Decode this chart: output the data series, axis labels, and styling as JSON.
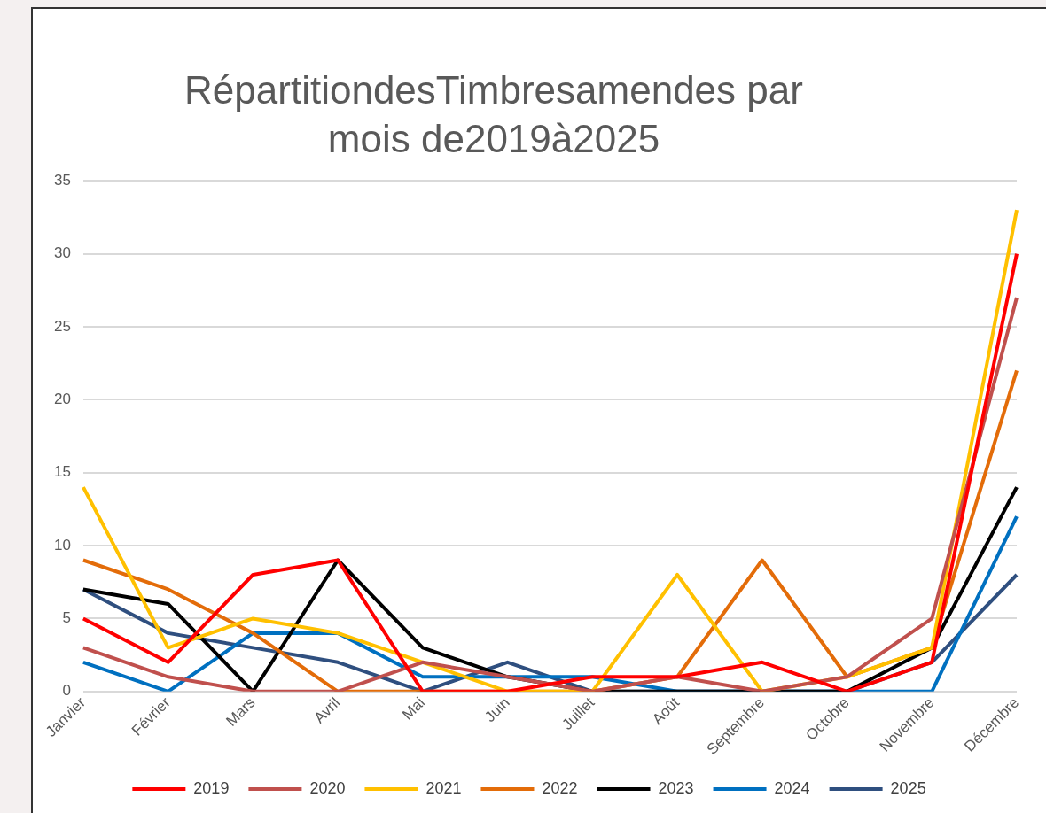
{
  "chart_data": {
    "type": "line",
    "title": "RépartitiondesTimbresamendes par mois de2019à2025",
    "categories": [
      "Janvier",
      "Février",
      "Mars",
      "Avril",
      "Mai",
      "Juin",
      "Juillet",
      "Août",
      "Septembre",
      "Octobre",
      "Novembre",
      "Décembre"
    ],
    "series": [
      {
        "name": "2019",
        "color": "#ff0000",
        "values": [
          5,
          2,
          8,
          9,
          0,
          0,
          1,
          1,
          2,
          0,
          2,
          30
        ]
      },
      {
        "name": "2020",
        "color": "#c0504d",
        "values": [
          3,
          1,
          0,
          0,
          2,
          1,
          0,
          1,
          0,
          1,
          5,
          27
        ]
      },
      {
        "name": "2021",
        "color": "#ffc000",
        "values": [
          14,
          3,
          5,
          4,
          2,
          0,
          0,
          8,
          0,
          1,
          3,
          33
        ]
      },
      {
        "name": "2022",
        "color": "#e36c09",
        "values": [
          9,
          7,
          4,
          0,
          0,
          0,
          0,
          1,
          9,
          1,
          3,
          22
        ]
      },
      {
        "name": "2023",
        "color": "#000000",
        "values": [
          7,
          6,
          0,
          9,
          3,
          1,
          0,
          0,
          0,
          0,
          3,
          14
        ]
      },
      {
        "name": "2024",
        "color": "#0070c0",
        "values": [
          2,
          0,
          4,
          4,
          1,
          1,
          1,
          0,
          0,
          0,
          0,
          12
        ]
      },
      {
        "name": "2025",
        "color": "#2f4f7f",
        "values": [
          7,
          4,
          3,
          2,
          0,
          2,
          0,
          0,
          0,
          0,
          2,
          8
        ]
      }
    ],
    "ylim": [
      0,
      35
    ],
    "yticks": [
      0,
      5,
      10,
      15,
      20,
      25,
      30,
      35
    ],
    "grid": "y",
    "legend": "bottom",
    "marker": "none",
    "line_style": "solid"
  }
}
